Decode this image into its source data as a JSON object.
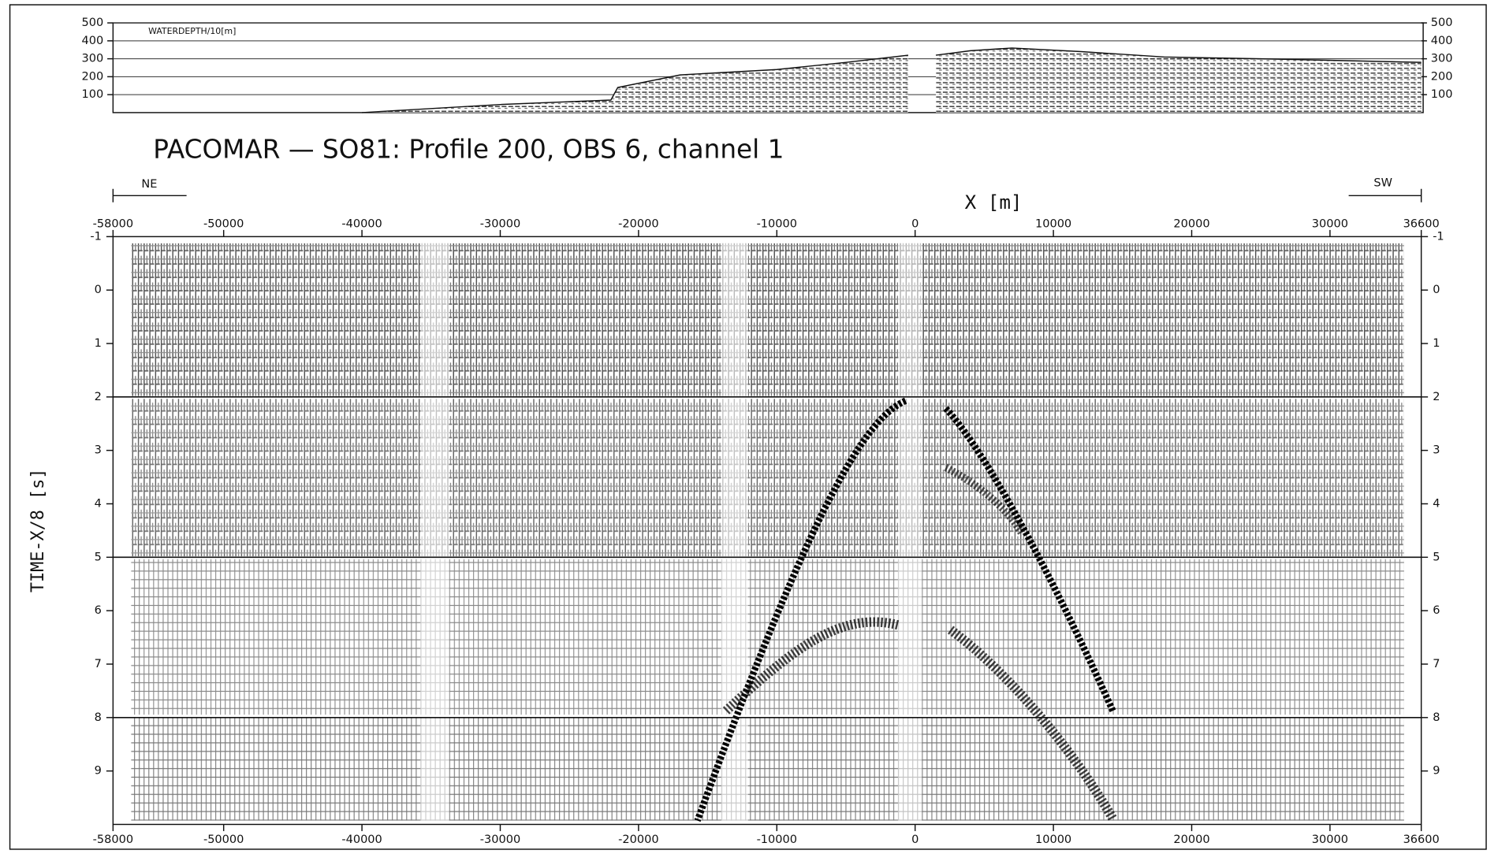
{
  "chart_data": [
    {
      "type": "seismic-section",
      "title": "PACOMAR — SO81: Profile 200, OBS 6, channel 1",
      "x_label": "X [m]",
      "y_label": "TIME-X/8 [s]",
      "left_direction": "NE",
      "right_direction": "SW",
      "xlim": [
        -58000,
        36600
      ],
      "xticks": [
        -58000,
        -50000,
        -40000,
        -30000,
        -20000,
        -10000,
        0,
        10000,
        20000,
        30000,
        36600
      ],
      "ylim": [
        10,
        -1
      ],
      "yticks": [
        -1,
        0,
        1,
        2,
        3,
        4,
        5,
        6,
        7,
        8,
        9
      ],
      "reference_lines": [
        2,
        5,
        8
      ]
    },
    {
      "type": "line",
      "y_label": "WATERDEPTH/10[m]",
      "xlim": [
        -58000,
        36600
      ],
      "ylim": [
        0,
        500
      ],
      "yticks": [
        100,
        200,
        300,
        400,
        500
      ],
      "grid": true,
      "color": "#111111",
      "x": [
        -40000,
        -30000,
        -22000,
        -21500,
        -17000,
        -10000,
        -5000,
        -500,
        1000,
        1500,
        4000,
        7000,
        12000,
        18000,
        25000,
        36600
      ],
      "values": [
        0,
        45,
        70,
        140,
        210,
        240,
        280,
        320,
        null,
        320,
        345,
        360,
        340,
        310,
        300,
        280
      ]
    }
  ]
}
